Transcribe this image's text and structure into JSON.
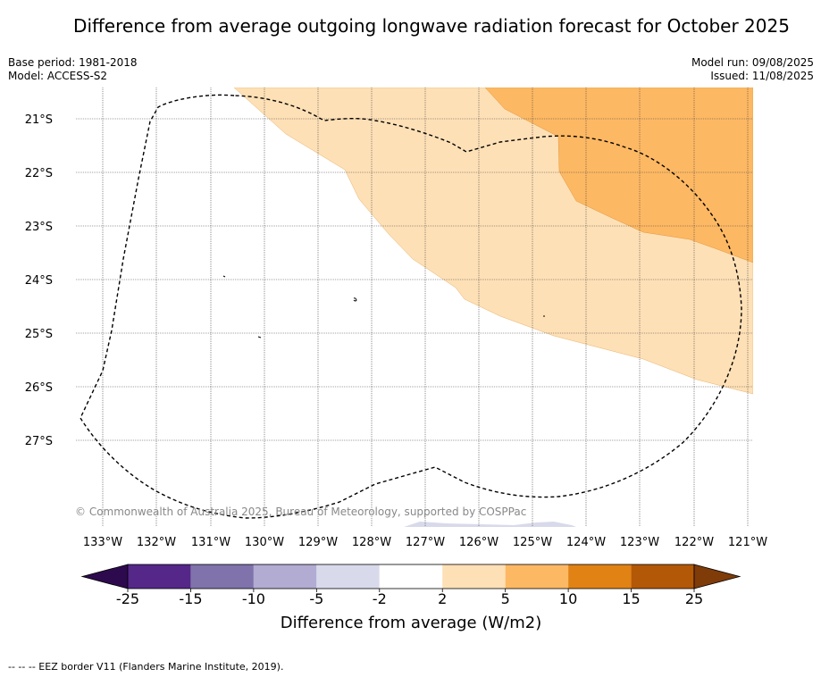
{
  "title": "Difference from average outgoing longwave radiation forecast for October 2025",
  "meta_left": [
    "Base period: 1981-2018",
    "Model: ACCESS-S2"
  ],
  "meta_right": [
    "Model run: 09/08/2025",
    "Issued: 11/08/2025"
  ],
  "map": {
    "lat_labels": [
      "21°S",
      "22°S",
      "23°S",
      "24°S",
      "25°S",
      "26°S",
      "27°S"
    ],
    "lon_labels": [
      "133°W",
      "132°W",
      "131°W",
      "130°W",
      "129°W",
      "128°W",
      "127°W",
      "126°W",
      "125°W",
      "124°W",
      "123°W",
      "122°W",
      "121°W"
    ],
    "copyright": "© Commonwealth of Australia 2025, Bureau of Meteorology, supported by COSPPac",
    "eez_border_style": "dashed black"
  },
  "colorbar": {
    "label": "Difference from average (W/m2)",
    "ticks": [
      "-25",
      "-15",
      "-10",
      "-5",
      "-2",
      "2",
      "5",
      "10",
      "15",
      "25"
    ],
    "under_color": "#2d0a4e",
    "colors": [
      "#542788",
      "#8073ac",
      "#b2abd2",
      "#d8daeb",
      "#ffffff",
      "#fee0b6",
      "#fdb863",
      "#e08214",
      "#b35806"
    ],
    "over_color": "#7f3b08"
  },
  "footer": "--  --  -- EEZ border V11 (Flanders Marine Institute, 2019)."
}
